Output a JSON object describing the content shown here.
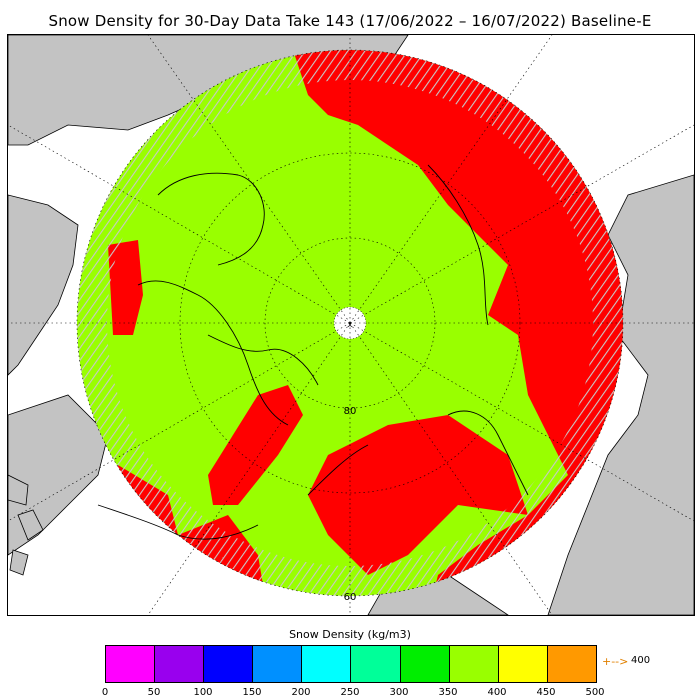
{
  "title": "Snow Density for 30-Day Data Take 143 (17/06/2022 – 16/07/2022) Baseline-E",
  "map": {
    "type": "polar-stereographic-north",
    "latitude_labels": [
      "60",
      "80"
    ],
    "colors": {
      "ocean": "#ffffff",
      "land": "#c3c3c3",
      "coastline": "#000000",
      "grid": "#000000",
      "hatch": "#c8c8c8"
    },
    "density_classes": [
      {
        "range": "350-400",
        "color": "#99ff00",
        "area": "central Arctic Ocean and most of the circle"
      },
      {
        "range": ">400",
        "color": "#ff0000",
        "area": "Barents/Kara seas, Eurasian margin, Beaufort patch, Baffin patch"
      }
    ]
  },
  "colorbar": {
    "title": "Snow Density (kg/m3)",
    "colors": [
      "#ff00ff",
      "#9900ee",
      "#0000ff",
      "#0090ff",
      "#00ffff",
      "#00ff99",
      "#00ee00",
      "#99ff00",
      "#ffff00",
      "#ff9900"
    ],
    "ticks": [
      "0",
      "50",
      "100",
      "150",
      "200",
      "250",
      "300",
      "350",
      "400",
      "450",
      "500"
    ],
    "overflow_symbol": "+-->",
    "overflow_value": "400",
    "overflow_color": "#ff0000"
  }
}
